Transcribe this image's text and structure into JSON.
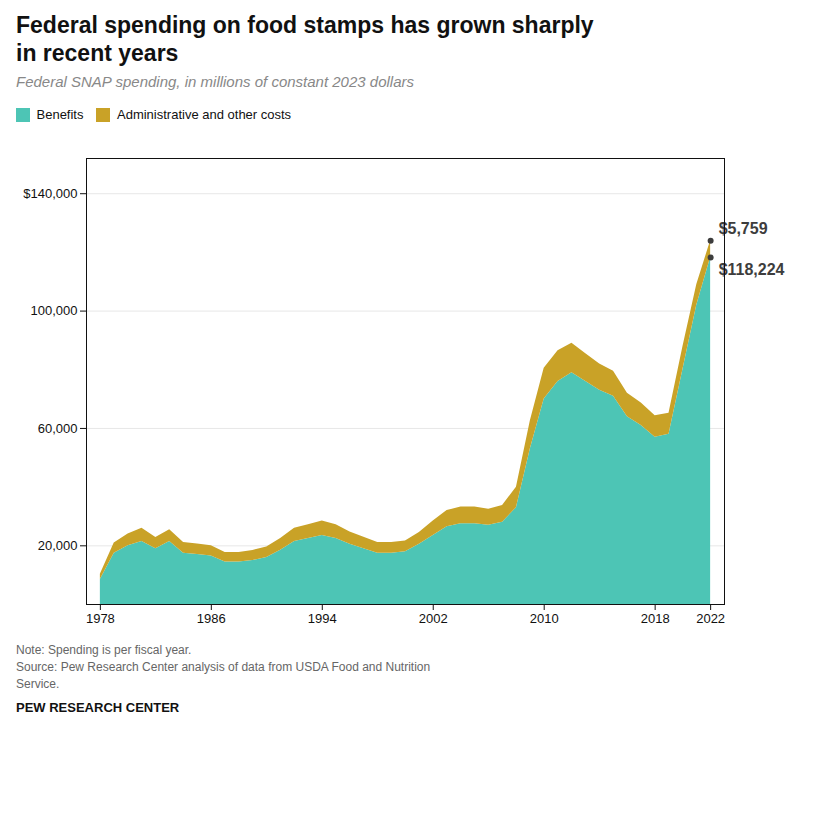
{
  "chart_data": {
    "type": "area",
    "stacked": true,
    "title": "Federal spending on food stamps has grown sharply\nin recent years",
    "subtitle": "Federal SNAP spending, in millions of constant 2023 dollars",
    "notes": [
      "Note: Spending is per fiscal year.",
      "Source: Pew Research Center analysis of data from USDA Food and Nutrition",
      "Service."
    ],
    "footer": "PEW RESEARCH CENTER",
    "x": [
      1978,
      1979,
      1980,
      1981,
      1982,
      1983,
      1984,
      1985,
      1986,
      1987,
      1988,
      1989,
      1990,
      1991,
      1992,
      1993,
      1994,
      1995,
      1996,
      1997,
      1998,
      1999,
      2000,
      2001,
      2002,
      2003,
      2004,
      2005,
      2006,
      2007,
      2008,
      2009,
      2010,
      2011,
      2012,
      2013,
      2014,
      2015,
      2016,
      2017,
      2018,
      2019,
      2020,
      2021,
      2022
    ],
    "series": [
      {
        "name": "Benefits",
        "color": "#4dc5b5",
        "values": [
          8500,
          17500,
          20000,
          21500,
          19000,
          21500,
          17500,
          17000,
          16500,
          14500,
          14500,
          15000,
          16000,
          18500,
          21500,
          22500,
          23500,
          22500,
          20500,
          19000,
          17500,
          17500,
          18000,
          20500,
          23500,
          26500,
          27500,
          27500,
          27000,
          28000,
          33000,
          53000,
          70000,
          76000,
          79000,
          76000,
          73000,
          71000,
          64000,
          61000,
          57000,
          58000,
          80000,
          102000,
          118224
        ]
      },
      {
        "name": "Administrative and other costs",
        "color": "#c9a227",
        "values": [
          1800,
          3500,
          4000,
          4500,
          3800,
          4000,
          3600,
          3600,
          3500,
          3200,
          3200,
          3400,
          3600,
          4000,
          4500,
          4700,
          5000,
          4700,
          4200,
          3900,
          3600,
          3600,
          3600,
          4000,
          5000,
          5500,
          5700,
          5700,
          5500,
          5700,
          7000,
          9500,
          10500,
          10500,
          10000,
          9500,
          9000,
          8500,
          8000,
          7700,
          7300,
          7200,
          7800,
          7000,
          5759
        ]
      }
    ],
    "annotations": [
      {
        "text": "$5,759",
        "x": 2022,
        "series": "Administrative and other costs"
      },
      {
        "text": "$118,224",
        "x": 2022,
        "series": "Benefits"
      }
    ],
    "xlim": [
      1977,
      2023
    ],
    "xticks": [
      1978,
      1986,
      1994,
      2002,
      2010,
      2018,
      2022
    ],
    "ylim": [
      0,
      152000
    ],
    "yticks": [
      {
        "value": 20000,
        "label": "20,000"
      },
      {
        "value": 60000,
        "label": "60,000"
      },
      {
        "value": 100000,
        "label": "100,000"
      },
      {
        "value": 140000,
        "label": "$140,000"
      }
    ],
    "grid": true,
    "legend": "top-left"
  }
}
